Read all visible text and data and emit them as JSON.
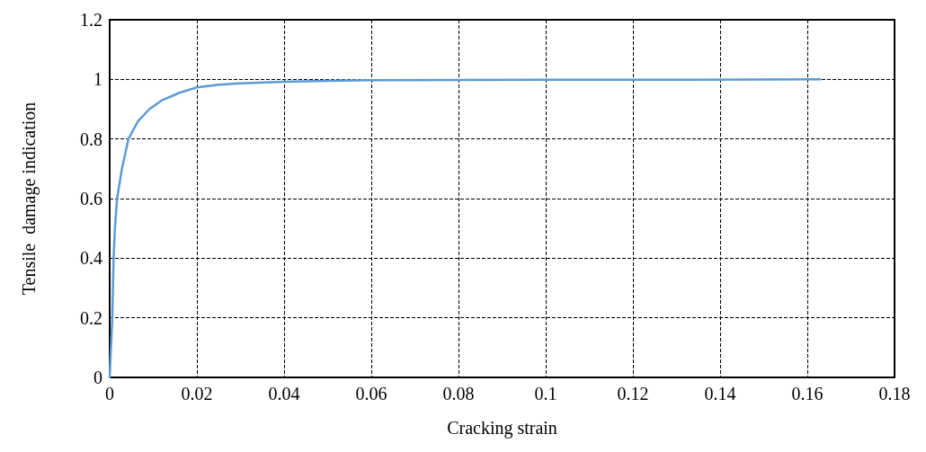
{
  "chart_data": {
    "type": "line",
    "xlabel": "Cracking strain",
    "ylabel": "Tensile  damage indication",
    "x": [
      0,
      0.0003,
      0.0006,
      0.0009,
      0.0012,
      0.0017,
      0.0028,
      0.0043,
      0.0065,
      0.0091,
      0.012,
      0.016,
      0.02,
      0.025,
      0.03,
      0.04,
      0.05,
      0.06,
      0.08,
      0.1,
      0.13,
      0.163
    ],
    "series": [
      {
        "color": "#5b9bd5",
        "values": [
          0,
          0.1,
          0.2,
          0.4,
          0.5,
          0.6,
          0.7,
          0.8,
          0.86,
          0.9,
          0.93,
          0.955,
          0.973,
          0.982,
          0.987,
          0.992,
          0.995,
          0.997,
          0.998,
          0.999,
          0.999,
          1
        ]
      }
    ],
    "xlim": [
      0,
      0.18
    ],
    "xticks": [
      0,
      0.02,
      0.04,
      0.06,
      0.08,
      0.1,
      0.12,
      0.14,
      0.16,
      0.18
    ],
    "ylim": [
      0,
      1.2
    ],
    "yticks": [
      0,
      0.2,
      0.4,
      0.6,
      0.8,
      1,
      1.2
    ],
    "grid": true,
    "marker": "none",
    "line_style": "solid"
  }
}
